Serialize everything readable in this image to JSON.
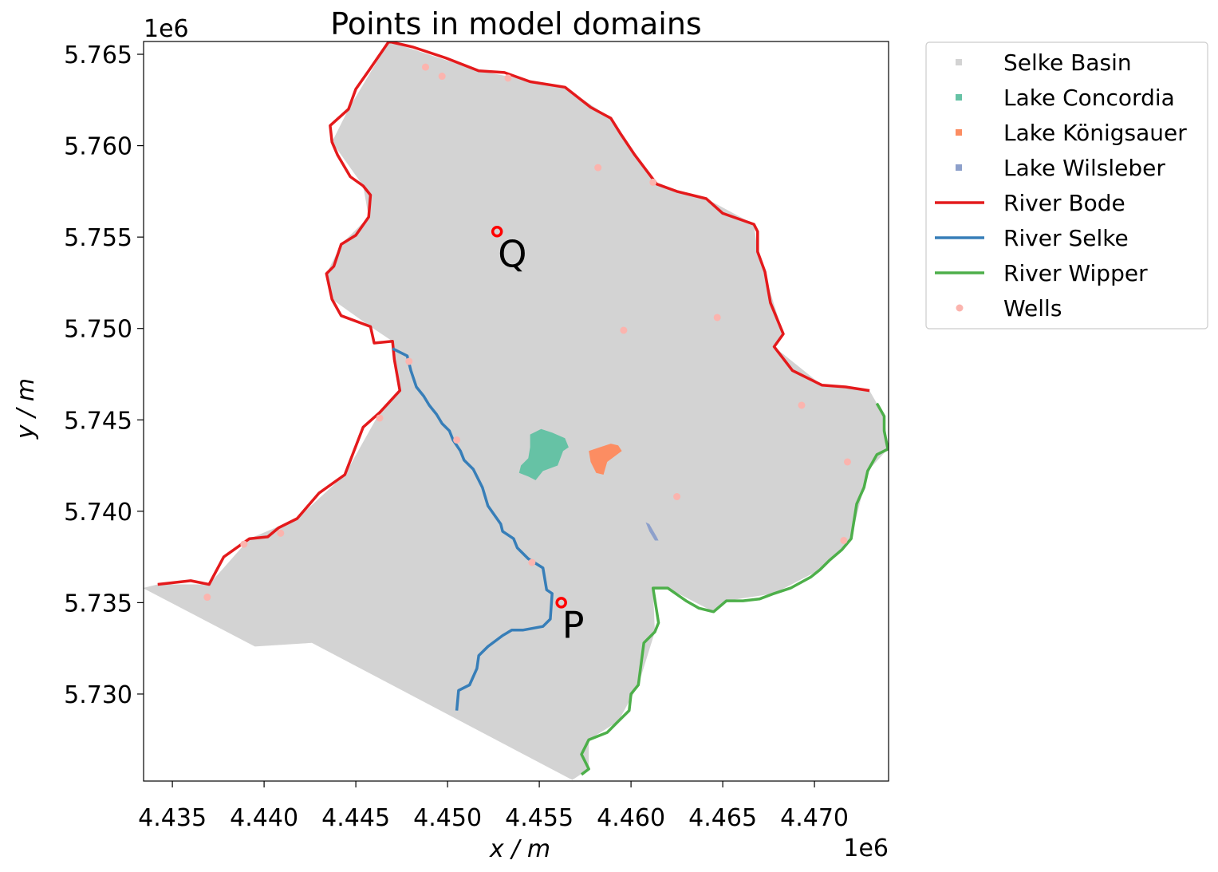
{
  "chart_data": {
    "type": "map",
    "title": "Points in model domains",
    "xlabel": "x / m",
    "ylabel": "y / m",
    "x_offset": "1e6",
    "y_offset": "1e6",
    "xlim": [
      4.43343,
      4.47404
    ],
    "ylim": [
      5.72524,
      5.7657
    ],
    "xticks": [
      4.435,
      {
        "value": 4.44,
        "label": "4.440"
      },
      4.445,
      {
        "value": 4.45,
        "label": "4.450"
      },
      4.455,
      {
        "value": 4.46,
        "label": "4.460"
      },
      4.465,
      {
        "value": 4.47,
        "label": "4.470"
      }
    ],
    "yticks": [
      {
        "value": 5.73,
        "label": "5.730"
      },
      5.735,
      {
        "value": 5.74,
        "label": "5.740"
      },
      5.745,
      {
        "value": 5.75,
        "label": "5.750"
      },
      5.755,
      {
        "value": 5.76,
        "label": "5.760"
      },
      5.765
    ],
    "legend": "outside upper right",
    "series": [
      {
        "name": "Selke Basin",
        "color": "#d3d3d3",
        "kind": "polygon",
        "x": [
          4.4342,
          4.437,
          4.4392,
          4.4418,
          4.4444,
          4.4463,
          4.4474,
          4.447,
          4.4458,
          4.4437,
          4.4434,
          4.4442,
          4.4457,
          4.4454,
          4.4437,
          4.4446,
          4.4468,
          4.4517,
          4.4564,
          4.4589,
          4.4614,
          4.4641,
          4.4667,
          4.4669,
          4.4683,
          4.4678,
          4.4704,
          4.473,
          4.4738,
          4.474,
          4.4729,
          4.472,
          4.4703,
          4.4678,
          4.4652,
          4.4645,
          4.462,
          4.4612,
          4.4613,
          4.4604,
          4.4593,
          4.4577,
          4.4577,
          4.4568,
          4.4426,
          4.4395,
          4.4334
        ],
        "values": [
          5.736,
          5.736,
          5.7385,
          5.7396,
          5.742,
          5.7454,
          5.7466,
          5.7493,
          5.7501,
          5.7516,
          5.753,
          5.7546,
          5.7561,
          5.7578,
          5.7602,
          5.762,
          5.7657,
          5.7641,
          5.7632,
          5.7615,
          5.7579,
          5.7571,
          5.7557,
          5.7542,
          5.7497,
          5.749,
          5.7469,
          5.7466,
          5.7452,
          5.7434,
          5.7422,
          5.7385,
          5.7368,
          5.7355,
          5.7351,
          5.7345,
          5.7358,
          5.7358,
          5.7334,
          5.7305,
          5.7285,
          5.7275,
          5.7259,
          5.7253,
          5.7328,
          5.7326,
          5.7358
        ]
      },
      {
        "name": "Lake Concordia",
        "color": "#66c2a5",
        "kind": "polygon",
        "x": [
          4.4545,
          4.4551,
          4.4557,
          4.4564,
          4.4566,
          4.4563,
          4.456,
          4.4552,
          4.4548,
          4.4544,
          4.4539,
          4.454,
          4.4544,
          4.4545
        ],
        "values": [
          5.7442,
          5.7445,
          5.7443,
          5.744,
          5.7435,
          5.7433,
          5.7425,
          5.7422,
          5.7417,
          5.7419,
          5.7421,
          5.7425,
          5.7429,
          5.7435
        ]
      },
      {
        "name": "Lake Königsauer",
        "color": "#fc8d62",
        "kind": "polygon",
        "x": [
          4.4577,
          4.4583,
          4.4589,
          4.4593,
          4.4595,
          4.4591,
          4.4587,
          4.4585,
          4.4581,
          4.4578
        ],
        "values": [
          5.7433,
          5.7435,
          5.7437,
          5.7436,
          5.7433,
          5.743,
          5.7427,
          5.742,
          5.7421,
          5.7427
        ]
      },
      {
        "name": "Lake Wilsleber",
        "color": "#8da0cb",
        "kind": "polygon",
        "x": [
          4.4608,
          4.461,
          4.4614,
          4.4615,
          4.4613,
          4.461
        ],
        "values": [
          5.7394,
          5.7393,
          5.7386,
          5.7384,
          5.7384,
          5.7389
        ]
      },
      {
        "name": "River Bode",
        "color": "#e41a1c",
        "kind": "line",
        "x": [
          4.4342,
          4.436,
          4.437,
          4.4378,
          4.4392,
          4.4402,
          4.4408,
          4.4418,
          4.443,
          4.4444,
          4.4454,
          4.4463,
          4.4474,
          4.4471,
          4.447,
          4.446,
          4.4458,
          4.4442,
          4.4437,
          4.4434,
          4.4438,
          4.4442,
          4.445,
          4.4457,
          4.4458,
          4.4454,
          4.4447,
          4.444,
          4.4437,
          4.4436,
          4.4446,
          4.445,
          4.4457,
          4.4468,
          4.4481,
          4.4499,
          4.4517,
          4.4531,
          4.4545,
          4.4564,
          4.4578,
          4.4589,
          4.4594,
          4.4602,
          4.4614,
          4.4625,
          4.4641,
          4.465,
          4.4667,
          4.4669,
          4.4669,
          4.4673,
          4.4676,
          4.4683,
          4.4678,
          4.4688,
          4.4704,
          4.4717,
          4.473
        ],
        "values": [
          5.736,
          5.7362,
          5.736,
          5.7375,
          5.7385,
          5.7386,
          5.7391,
          5.7396,
          5.741,
          5.742,
          5.7446,
          5.7454,
          5.7466,
          5.7483,
          5.7493,
          5.7492,
          5.7501,
          5.7507,
          5.7516,
          5.753,
          5.7534,
          5.7546,
          5.7551,
          5.7561,
          5.7573,
          5.7578,
          5.7583,
          5.7595,
          5.7602,
          5.7611,
          5.762,
          5.7631,
          5.7641,
          5.7657,
          5.7654,
          5.7648,
          5.7641,
          5.764,
          5.7635,
          5.7632,
          5.7621,
          5.7615,
          5.7607,
          5.7595,
          5.7579,
          5.7575,
          5.7571,
          5.7563,
          5.7557,
          5.7553,
          5.7542,
          5.7531,
          5.7514,
          5.7497,
          5.749,
          5.7477,
          5.7469,
          5.7468,
          5.7466
        ]
      },
      {
        "name": "River Selke",
        "color": "#377eb8",
        "kind": "line",
        "x": [
          4.447,
          4.4478,
          4.448,
          4.4483,
          4.4487,
          4.449,
          4.4494,
          4.4497,
          4.4501,
          4.4503,
          4.4507,
          4.4509,
          4.4514,
          4.4519,
          4.4522,
          4.4529,
          4.453,
          4.4536,
          4.4538,
          4.4544,
          4.4552,
          4.4554,
          4.4557,
          4.4556,
          4.4552,
          4.4541,
          4.4535,
          4.453,
          4.4522,
          4.4517,
          4.4516,
          4.4512,
          4.4506,
          4.4505
        ],
        "values": [
          5.7489,
          5.7485,
          5.7477,
          5.7468,
          5.7463,
          5.7458,
          5.7453,
          5.7448,
          5.7444,
          5.7439,
          5.7433,
          5.7428,
          5.7423,
          5.7413,
          5.7403,
          5.7393,
          5.7389,
          5.7385,
          5.738,
          5.7374,
          5.7369,
          5.7357,
          5.7355,
          5.7341,
          5.7337,
          5.7335,
          5.7335,
          5.7332,
          5.7326,
          5.7321,
          5.7314,
          5.7305,
          5.7302,
          5.7291
        ]
      },
      {
        "name": "River Wipper",
        "color": "#4daf4a",
        "kind": "line",
        "x": [
          4.4734,
          4.4738,
          4.4738,
          4.474,
          4.4734,
          4.4729,
          4.4727,
          4.4723,
          4.472,
          4.4715,
          4.4708,
          4.4703,
          4.4698,
          4.4687,
          4.4678,
          4.467,
          4.4661,
          4.4652,
          4.4645,
          4.4637,
          4.463,
          4.462,
          4.4612,
          4.4615,
          4.4613,
          4.4607,
          4.4604,
          4.46,
          4.4599,
          4.4593,
          4.4587,
          4.4577,
          4.4573,
          4.4577,
          4.4573
        ],
        "values": [
          5.7459,
          5.7452,
          5.7444,
          5.7434,
          5.7431,
          5.7422,
          5.7413,
          5.7404,
          5.7385,
          5.7379,
          5.7373,
          5.7368,
          5.7364,
          5.7358,
          5.7355,
          5.7352,
          5.7351,
          5.7351,
          5.7345,
          5.7347,
          5.7351,
          5.7358,
          5.7358,
          5.7339,
          5.7334,
          5.7328,
          5.7305,
          5.73,
          5.7291,
          5.7285,
          5.7279,
          5.7275,
          5.7267,
          5.7259,
          5.7256
        ]
      },
      {
        "name": "Wells",
        "color": "#fbb4ae",
        "kind": "points",
        "x": [
          4.4488,
          4.4497,
          4.4533,
          4.4582,
          4.4612,
          4.4647,
          4.4596,
          4.4693,
          4.4718,
          4.4625,
          4.4716,
          4.4546,
          4.4505,
          4.4479,
          4.4463,
          4.4409,
          4.4389,
          4.4369
        ],
        "values": [
          5.7643,
          5.7638,
          5.7637,
          5.7588,
          5.758,
          5.7506,
          5.7499,
          5.7458,
          5.7427,
          5.7408,
          5.7384,
          5.7372,
          5.7439,
          5.7482,
          5.7451,
          5.7388,
          5.7382,
          5.7353
        ]
      }
    ],
    "annotations": [
      {
        "label": "Q",
        "x": 4.4527,
        "y": 5.7553,
        "color": "#ff0000"
      },
      {
        "label": "P",
        "x": 4.4562,
        "y": 5.735,
        "color": "#ff0000"
      }
    ]
  }
}
